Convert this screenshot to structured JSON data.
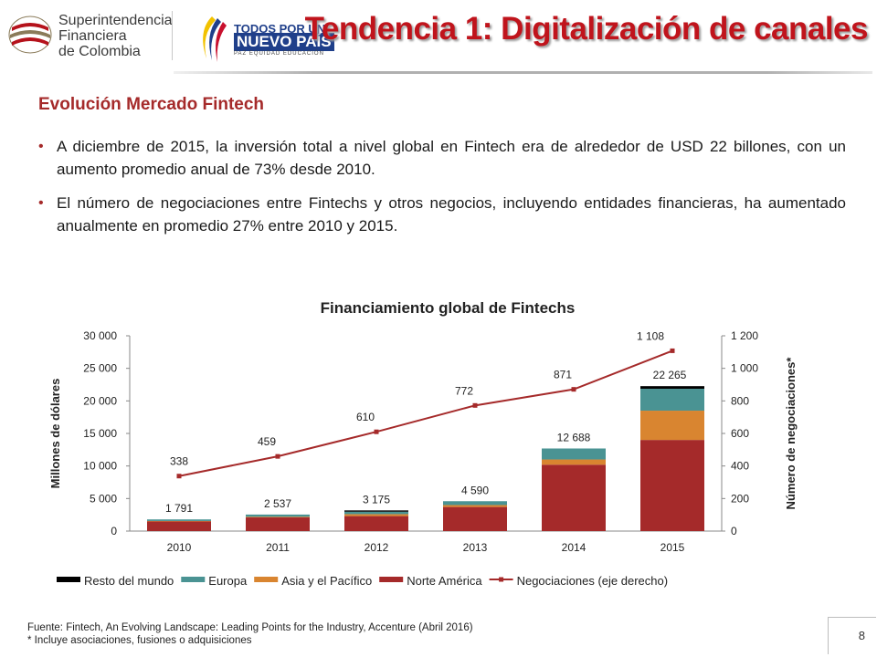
{
  "header": {
    "org_lines": [
      "Superintendencia",
      "Financiera",
      "de Colombia"
    ],
    "campaign_line1": "TODOS POR UN",
    "campaign_line2": "NUEVO PAÍS",
    "campaign_tagline": "PAZ  EQUIDAD  EDUCACIÓN",
    "title": "Tendencia 1: Digitalización de canales"
  },
  "section_title": "Evolución Mercado Fintech",
  "bullets": [
    "A diciembre de 2015, la inversión total a nivel global en Fintech era de alrededor de USD 22 billones, con un aumento promedio anual de 73% desde 2010.",
    "El número de negociaciones entre Fintechs y otros negocios, incluyendo entidades financieras, ha aumentado anualmente en promedio 27% entre 2010 y 2015."
  ],
  "chart_data": {
    "type": "bar",
    "title": "Financiamiento global de Fintechs",
    "ylabel": "Millones de dólares",
    "y2label": "Número de negociaciones*",
    "ylim": [
      0,
      30000
    ],
    "y2lim": [
      0,
      1200
    ],
    "yticks": [
      "0",
      "5 000",
      "10 000",
      "15 000",
      "20 000",
      "25 000",
      "30 000"
    ],
    "y2ticks": [
      "0",
      "200",
      "400",
      "600",
      "800",
      "1 000",
      "1 200"
    ],
    "categories": [
      "2010",
      "2011",
      "2012",
      "2013",
      "2014",
      "2015"
    ],
    "stacked": true,
    "series": [
      {
        "name": "Norte América",
        "color": "#a52a2a",
        "values": [
          1500,
          2100,
          2300,
          3700,
          10200,
          14000
        ]
      },
      {
        "name": "Asia y el Pacífico",
        "color": "#d98530",
        "values": [
          50,
          100,
          300,
          300,
          800,
          4500
        ]
      },
      {
        "name": "Europa",
        "color": "#4a9393",
        "values": [
          241,
          337,
          375,
          590,
          1688,
          3365
        ]
      },
      {
        "name": "Resto del mundo",
        "color": "#000000",
        "values": [
          0,
          0,
          200,
          0,
          0,
          400
        ]
      }
    ],
    "totals": [
      "1 791",
      "2 537",
      "3 175",
      "4 590",
      "12 688",
      "22 265"
    ],
    "line": {
      "name": "Negociaciones (eje derecho)",
      "color": "#a52a2a",
      "values": [
        338,
        459,
        610,
        772,
        871,
        1108
      ],
      "labels": [
        "338",
        "459",
        "610",
        "772",
        "871",
        "1 108"
      ]
    },
    "legend_order": [
      "Resto del mundo",
      "Europa",
      "Asia y el Pacífico",
      "Norte América",
      "Negociaciones (eje derecho)"
    ],
    "legend_position": "bottom"
  },
  "footer": {
    "source": "Fuente: Fintech, An Evolving Landscape: Leading Points for the Industry, Accenture (Abril 2016)",
    "note": "* Incluye asociaciones, fusiones o adquisiciones"
  },
  "page_number": "8"
}
